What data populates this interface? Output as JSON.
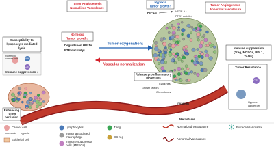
{
  "top_left_box": {
    "lines": [
      "Tumor Angiogenesis",
      "Normalized Vasculature"
    ]
  },
  "hypoxia_box": {
    "lines": [
      "Hypoxia",
      "Tumor growth↑"
    ]
  },
  "hif_hypoxia": "HIF-1α",
  "vegf": "VEGF-A ↑",
  "pten_down": "PTEN activity↓",
  "top_right_box": {
    "lines": [
      "Tumor Angiogenesis",
      "Abnormal vasculature"
    ]
  },
  "susceptibility_box": {
    "lines": [
      "Susceptibility to",
      "lymphocyte mediated",
      "lysis"
    ]
  },
  "normoxic_cell": {
    "lines": [
      "Normoxic",
      "cancer cell"
    ]
  },
  "nk": "NK",
  "ctl_left": "CTL",
  "immune_down": "Immune suppression ↓",
  "normoxia_box": {
    "lines": [
      "Normoxia",
      "Tumor growth↓"
    ]
  },
  "degradation": "Degradation HIF-1α",
  "pten_up": "PTEN activity↑",
  "oxygenation": "Tumor oxygenation↓",
  "normalization": "Vascular normalization",
  "immune_right": {
    "lines": [
      "Immune suppression",
      "(Treg, MDSCs, PDL1,",
      "TAMs)"
    ]
  },
  "resistance": "Tumor Resistance",
  "hypoxic_cell": {
    "lines": [
      "Hypoxic",
      "cancer cell"
    ]
  },
  "ctl_right": "CTL",
  "perfusion": {
    "lines": [
      "Enhancing",
      "Tumor",
      "perfusion"
    ]
  },
  "release": {
    "lines": [
      "Release proinflammatory",
      "molecules"
    ]
  },
  "molecules": [
    "Cytokines",
    "Growth factors",
    "Chemokines"
  ],
  "invasion": "Invasion",
  "metastasis": "Metastasis",
  "legend": {
    "cancer_cell": "Cancer cell",
    "normoxia": "normoxia",
    "hypoxia": "hypoxia",
    "lymphocytes": "Lymphocytes",
    "macrophage": {
      "lines": [
        "Tumor associated",
        "macrophage"
      ]
    },
    "treg": "T reg",
    "epithelial": "Epithelial cell",
    "dcreg": "DC reg",
    "mdsc": {
      "lines": [
        "Immune suppressor",
        "cells (MDSCs)"
      ]
    },
    "normalized": "Normalized Vasculature",
    "abnormal": "Abnormal Vasculature",
    "ecm": "Extracellular matrix"
  }
}
